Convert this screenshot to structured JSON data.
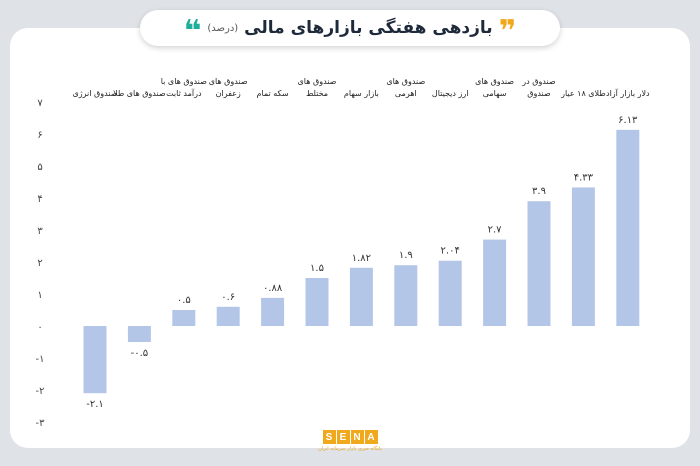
{
  "header": {
    "title": "بازدهی هفتگی بازارهای مالی",
    "subtitle": "(درصد)"
  },
  "footer": {
    "logo_letters": [
      "S",
      "E",
      "N",
      "A"
    ],
    "tagline": "پایگاه خبری بازار سرمایه ایران"
  },
  "colors": {
    "bar": "#b4c6e7",
    "accent_teal": "#1fae9b",
    "accent_orange": "#f0a81c",
    "text": "#333333"
  },
  "chart_data": {
    "type": "bar",
    "categories": [
      "صندوق انرژی",
      "صندوق های طلا",
      "صندوق های با درآمد ثابت",
      "صندوق های زعفران",
      "سکه تمام",
      "صندوق های مختلط",
      "بازار سهام",
      "صندوق های اهرمی",
      "ارز دیجیتال",
      "صندوق های سهامی",
      "صندوق در صندوق",
      "طلای ۱۸ عیار",
      "دلار بازار آزاد"
    ],
    "values": [
      -2.1,
      -0.5,
      0.5,
      0.6,
      0.88,
      1.5,
      1.82,
      1.9,
      2.04,
      2.7,
      3.9,
      4.33,
      6.13
    ],
    "value_labels": [
      "-۲.۱",
      "-۰.۵",
      "۰.۵",
      "۰.۶",
      "۰.۸۸",
      "۱.۵",
      "۱.۸۲",
      "۱.۹",
      "۲.۰۴",
      "۲.۷",
      "۳.۹",
      "۴.۳۳",
      "۶.۱۳"
    ],
    "category_lines": [
      [
        "صندوق انرژی"
      ],
      [
        "صندوق های طلا"
      ],
      [
        "صندوق های با",
        "درآمد ثابت"
      ],
      [
        "صندوق های",
        "زعفران"
      ],
      [
        "سکه تمام"
      ],
      [
        "صندوق های",
        "مختلط"
      ],
      [
        "بازار سهام"
      ],
      [
        "صندوق های",
        "اهرمی"
      ],
      [
        "ارز دیجیتال"
      ],
      [
        "صندوق های",
        "سهامی"
      ],
      [
        "صندوق در",
        "صندوق"
      ],
      [
        "طلای ۱۸ عیار"
      ],
      [
        "دلار بازار آزاد"
      ]
    ],
    "y_ticks": [
      7,
      6,
      5,
      4,
      3,
      2,
      1,
      0,
      -1,
      -2,
      -3
    ],
    "y_tick_labels": [
      "۷",
      "۶",
      "۵",
      "۴",
      "۳",
      "۲",
      "۱",
      "۰",
      "-۱",
      "-۲",
      "-۳"
    ],
    "ylim": [
      -3,
      7
    ],
    "grid": false,
    "title": "بازدهی هفتگی بازارهای مالی"
  }
}
